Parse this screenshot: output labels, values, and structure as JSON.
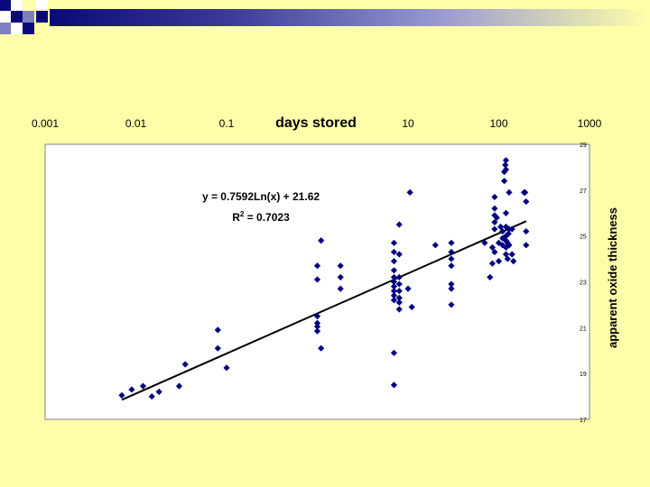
{
  "colors": {
    "background": "#FFFFAA",
    "accent": "#0A0A78",
    "plot_background": "#FFFFFF",
    "marker": "#000080",
    "trendline": "#000000"
  },
  "chart_data": {
    "type": "scatter",
    "title": "",
    "xlabel": "days stored",
    "ylabel": "apparent oxide thickness",
    "x_scale": "log",
    "xlim": [
      0.001,
      1000
    ],
    "ylim": [
      17,
      29
    ],
    "x_ticks": [
      0.001,
      0.01,
      0.1,
      1,
      10,
      100,
      1000
    ],
    "x_tick_labels": [
      "0.001",
      "0.01",
      "0.1",
      "",
      "10",
      "100",
      "1000"
    ],
    "y_ticks": [
      17,
      19,
      21,
      23,
      25,
      27,
      29
    ],
    "y_tick_labels": [
      "17",
      "19",
      "21",
      "23",
      "25",
      "27",
      "29"
    ],
    "grid": false,
    "legend": "none",
    "trendline": {
      "type": "logarithmic",
      "a": 0.7592,
      "b": 21.62,
      "x_range": [
        0.007,
        200
      ],
      "equation_label": "y = 0.7592Ln(x) + 21.62",
      "r2_label_prefix": "R",
      "r2_label_sup": "2",
      "r2_label_suffix": " = 0.7023"
    },
    "series": [
      {
        "points": [
          [
            0.007,
            18.05
          ],
          [
            0.009,
            18.3
          ],
          [
            0.012,
            18.45
          ],
          [
            0.015,
            18.0
          ],
          [
            0.018,
            18.2
          ],
          [
            0.03,
            18.45
          ],
          [
            0.035,
            19.4
          ],
          [
            0.08,
            20.9
          ],
          [
            0.08,
            20.1
          ],
          [
            0.1,
            19.25
          ],
          [
            1,
            21.5
          ],
          [
            1,
            21.2
          ],
          [
            1,
            21.05
          ],
          [
            1,
            20.85
          ],
          [
            1.1,
            20.1
          ],
          [
            1,
            23.1
          ],
          [
            1,
            23.7
          ],
          [
            1.1,
            24.8
          ],
          [
            1.8,
            23.7
          ],
          [
            1.8,
            23.2
          ],
          [
            1.8,
            22.7
          ],
          [
            7,
            24.7
          ],
          [
            7,
            24.3
          ],
          [
            7,
            23.9
          ],
          [
            7,
            23.5
          ],
          [
            7,
            23.2
          ],
          [
            7,
            23.0
          ],
          [
            7,
            22.8
          ],
          [
            7,
            22.6
          ],
          [
            7,
            22.4
          ],
          [
            7,
            22.2
          ],
          [
            7,
            19.9
          ],
          [
            7,
            18.5
          ],
          [
            8,
            25.5
          ],
          [
            8,
            24.2
          ],
          [
            8,
            23.2
          ],
          [
            8,
            22.9
          ],
          [
            8,
            22.6
          ],
          [
            8,
            22.3
          ],
          [
            8,
            22.1
          ],
          [
            8,
            21.8
          ],
          [
            10,
            22.7
          ],
          [
            10.5,
            26.9
          ],
          [
            11,
            21.9
          ],
          [
            20,
            24.6
          ],
          [
            30,
            24.7
          ],
          [
            30,
            24.3
          ],
          [
            30,
            24.0
          ],
          [
            30,
            23.7
          ],
          [
            30,
            22.9
          ],
          [
            30,
            22.7
          ],
          [
            30,
            22.0
          ],
          [
            70,
            24.7
          ],
          [
            80,
            23.2
          ],
          [
            85,
            24.5
          ],
          [
            85,
            23.8
          ],
          [
            90,
            26.7
          ],
          [
            90,
            26.2
          ],
          [
            90,
            25.9
          ],
          [
            90,
            25.6
          ],
          [
            90,
            25.3
          ],
          [
            90,
            24.3
          ],
          [
            95,
            25.8
          ],
          [
            100,
            24.7
          ],
          [
            100,
            23.9
          ],
          [
            105,
            25.4
          ],
          [
            110,
            25.2
          ],
          [
            110,
            24.9
          ],
          [
            110,
            24.6
          ],
          [
            115,
            27.4
          ],
          [
            115,
            27.8
          ],
          [
            118,
            28.1
          ],
          [
            120,
            28.3
          ],
          [
            120,
            27.9
          ],
          [
            120,
            26.0
          ],
          [
            120,
            25.4
          ],
          [
            120,
            25.0
          ],
          [
            120,
            24.8
          ],
          [
            120,
            24.5
          ],
          [
            120,
            24.2
          ],
          [
            125,
            24.7
          ],
          [
            125,
            24.0
          ],
          [
            128,
            25.1
          ],
          [
            130,
            26.9
          ],
          [
            130,
            25.3
          ],
          [
            130,
            24.6
          ],
          [
            140,
            25.3
          ],
          [
            140,
            24.2
          ],
          [
            145,
            23.9
          ],
          [
            190,
            26.9
          ],
          [
            195,
            26.9
          ],
          [
            200,
            26.5
          ],
          [
            200,
            25.2
          ],
          [
            200,
            24.6
          ]
        ]
      }
    ]
  }
}
